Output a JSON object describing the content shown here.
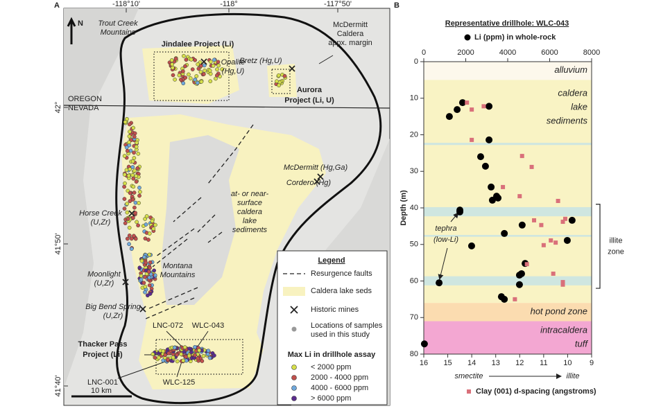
{
  "map": {
    "panel": "A",
    "lon_labels": [
      "-118°10'",
      "-118°",
      "-117°50'"
    ],
    "lat_labels": [
      "42°",
      "41°50'",
      "41°40'"
    ],
    "north": "N",
    "scale": "10 km",
    "places": [
      {
        "lines": [
          "Trout Creek",
          "Mountains"
        ]
      },
      {
        "lines": [
          "Jindalee Project (Li)"
        ]
      },
      {
        "lines": [
          "Opalite",
          "(Hg,U)"
        ]
      },
      {
        "lines": [
          "Bretz (Hg,U)"
        ]
      },
      {
        "lines": [
          "McDermitt",
          "Caldera",
          "appx. margin"
        ]
      },
      {
        "lines": [
          "Aurora",
          "Project (Li, U)"
        ]
      },
      {
        "lines": [
          "OREGON",
          "NEVADA"
        ]
      },
      {
        "lines": [
          "McDermitt (Hg,Ga)"
        ]
      },
      {
        "lines": [
          "Cordero (Hg)"
        ]
      },
      {
        "lines": [
          "at- or near-",
          "surface",
          "caldera",
          "lake",
          "sediments"
        ]
      },
      {
        "lines": [
          "Horse Creek",
          "(U,Zr)"
        ]
      },
      {
        "lines": [
          "Moonlight",
          "(U,Zr)"
        ]
      },
      {
        "lines": [
          "Montana",
          "Mountains"
        ]
      },
      {
        "lines": [
          "Big Bend Spring",
          "(U,Zr)"
        ]
      },
      {
        "lines": [
          "LNC-072"
        ]
      },
      {
        "lines": [
          "WLC-043"
        ]
      },
      {
        "lines": [
          "Thacker Pass",
          "Project (Li)"
        ]
      },
      {
        "lines": [
          "LNC-001"
        ]
      },
      {
        "lines": [
          "WLC-125"
        ]
      }
    ],
    "legend": {
      "title": "Legend",
      "items": [
        {
          "lines": [
            "Resurgence faults"
          ]
        },
        {
          "lines": [
            "Caldera lake seds"
          ]
        },
        {
          "lines": [
            "Historic mines"
          ]
        },
        {
          "lines": [
            "Locations of samples",
            "used in this study"
          ]
        }
      ],
      "assay_title": "Max Li in drillhole assay",
      "assay_items": [
        {
          "label": "< 2000 ppm",
          "color": "#d6df4a"
        },
        {
          "label": "2000 - 4000 ppm",
          "color": "#c0504d"
        },
        {
          "label": "4000 - 6000 ppm",
          "color": "#6fa8dc"
        },
        {
          "label": "> 6000 ppm",
          "color": "#5b2c8e"
        }
      ]
    }
  },
  "chart_data": {
    "type": "scatter",
    "panel": "B",
    "title": "Representative drillhole: WLC-043",
    "ylabel": "Depth (m)",
    "ylim": [
      0,
      80
    ],
    "yticks": [
      0,
      10,
      20,
      30,
      40,
      50,
      60,
      70,
      80
    ],
    "xlim": [
      0,
      8000
    ],
    "xticks": [
      0,
      2000,
      4000,
      6000,
      8000
    ],
    "x2lim": [
      16,
      9
    ],
    "x2ticks": [
      16,
      15,
      14,
      13,
      12,
      11,
      10,
      9
    ],
    "x2_left_label": "smectite",
    "x2_right_label": "illite",
    "series": [
      {
        "name": "Li (ppm) in whole-rock",
        "color": "#000000",
        "marker": "circle",
        "axis": "x",
        "x": [
          1850,
          1590,
          1220,
          3110,
          3110,
          2710,
          2940,
          3210,
          3470,
          3540,
          3270,
          1720,
          1720,
          4690,
          7070,
          6840,
          3840,
          2280,
          4830,
          4660,
          4560,
          4560,
          730,
          3700,
          3840,
          30
        ],
        "y": [
          11.2,
          13.1,
          15,
          12.2,
          21.4,
          26,
          28.6,
          34.3,
          36.8,
          37.3,
          37.9,
          40.6,
          41.1,
          44.7,
          43.4,
          48.9,
          47,
          50.4,
          55.2,
          58,
          58.4,
          61,
          60.5,
          64.3,
          65,
          77.2
        ]
      },
      {
        "name": "Clay (001) d-spacing (angstroms)",
        "color": "#d9707a",
        "marker": "square",
        "axis": "x2",
        "x": [
          14.2,
          14.0,
          13.5,
          14.0,
          11.9,
          11.5,
          12.7,
          12.0,
          10.4,
          11.4,
          11.1,
          10.1,
          10.2,
          10.7,
          10.5,
          11.0,
          11.7,
          10.6,
          10.2,
          10.2,
          12.2
        ],
        "y": [
          11.2,
          13.1,
          12.2,
          21.4,
          25.8,
          28.8,
          34.3,
          36.8,
          38.1,
          43.4,
          44.7,
          43,
          43.8,
          48.9,
          49.5,
          50.2,
          55.4,
          58,
          60.3,
          61,
          65
        ]
      }
    ],
    "zones": [
      {
        "lines": [
          "alluvium"
        ],
        "from": 0,
        "to": 5,
        "color": "#fdf8ec"
      },
      {
        "lines": [
          "caldera",
          "lake",
          "sediments"
        ],
        "from": 5,
        "to": 66,
        "color": "#f9f3c4"
      },
      {
        "lines": [
          "hot pond zone"
        ],
        "from": 66,
        "to": 71,
        "color": "#fbdcb0"
      },
      {
        "lines": [
          "intracaldera",
          "tuff"
        ],
        "from": 71,
        "to": 80,
        "color": "#f3a7d2"
      }
    ],
    "bands": [
      {
        "from": 22.2,
        "to": 22.8,
        "color": "#cfe6e0"
      },
      {
        "from": 39.8,
        "to": 42.3,
        "color": "#cfe6e0"
      },
      {
        "from": 47.4,
        "to": 47.9,
        "color": "#cfe6e0"
      },
      {
        "from": 58.7,
        "to": 61.2,
        "color": "#cfe6e0"
      }
    ],
    "bracket": {
      "lines": [
        "illite",
        "zone"
      ],
      "from": 39,
      "to": 62
    },
    "annotation": {
      "lines": [
        "tephra",
        "(low-Li)"
      ]
    }
  }
}
